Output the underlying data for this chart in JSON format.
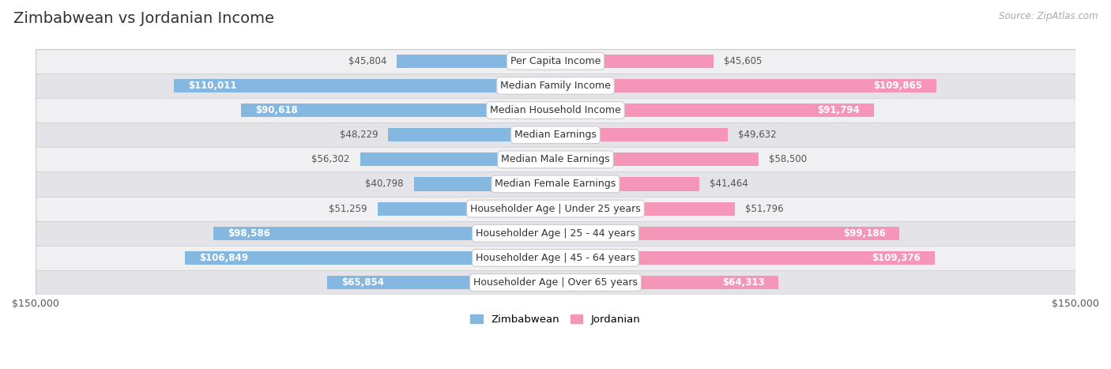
{
  "title": "Zimbabwean vs Jordanian Income",
  "source": "Source: ZipAtlas.com",
  "categories": [
    "Per Capita Income",
    "Median Family Income",
    "Median Household Income",
    "Median Earnings",
    "Median Male Earnings",
    "Median Female Earnings",
    "Householder Age | Under 25 years",
    "Householder Age | 25 - 44 years",
    "Householder Age | 45 - 64 years",
    "Householder Age | Over 65 years"
  ],
  "zimbabwean": [
    45804,
    110011,
    90618,
    48229,
    56302,
    40798,
    51259,
    98586,
    106849,
    65854
  ],
  "jordanian": [
    45605,
    109865,
    91794,
    49632,
    58500,
    41464,
    51796,
    99186,
    109376,
    64313
  ],
  "zim_color": "#85b8e0",
  "jor_color": "#f595b8",
  "row_colors": [
    "#f0f0f2",
    "#e4e4e8"
  ],
  "max_value": 150000,
  "label_left": "$150,000",
  "label_right": "$150,000",
  "title_fontsize": 14,
  "value_fontsize": 8.5,
  "cat_fontsize": 9,
  "legend_fontsize": 9.5,
  "inside_threshold": 60000,
  "bar_height": 0.55
}
